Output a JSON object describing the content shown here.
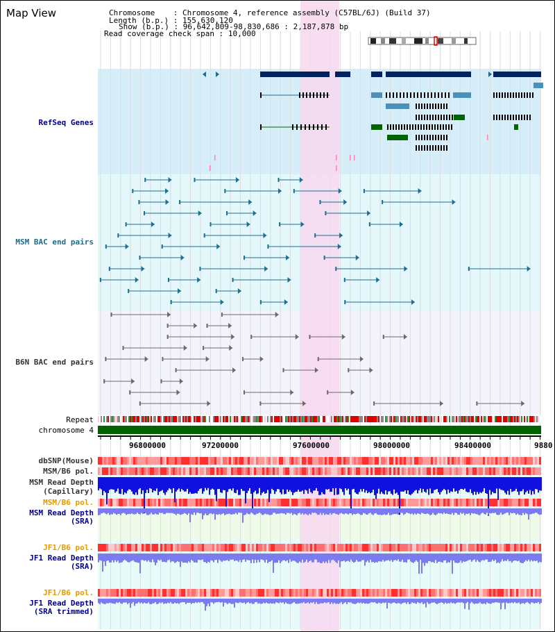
{
  "title": "Map View",
  "header": {
    "chromosome_label": "Chromosome",
    "chromosome_value": "Chromosome 4, reference assembly (C57BL/6J) (Build 37)",
    "length_label": "Length (b.p.)",
    "length_value": "155,630,120",
    "show_label": "Show (b.p.)",
    "show_value": "96,642,809-98,830,686 : 2,187,878 bp",
    "coverage_label": "Read coverage check span",
    "coverage_value": "10,000"
  },
  "tracks": {
    "refseq": "RefSeq Genes",
    "msm_bac": "MSM BAC end pairs",
    "b6n_bac": "B6N BAC end pairs",
    "repeat": "Repeat",
    "chromosome": "chromosome 4",
    "dbsnp": "dbSNP(Mouse)",
    "msm_b6_pol_1": "MSM/B6 pol.",
    "msm_read_depth_cap_1": "MSM Read Depth",
    "msm_read_depth_cap_2": "(Capillary)",
    "msm_b6_pol_2": "MSM/B6 pol.",
    "msm_read_depth_sra_1": "MSM Read Depth",
    "msm_read_depth_sra_2": "(SRA)",
    "jf1_b6_pol_1": "JF1/B6 pol.",
    "jf1_read_depth_sra_1": "JF1 Read Depth",
    "jf1_read_depth_sra_2": "(SRA)",
    "jf1_b6_pol_2": "JF1/B6 pol.",
    "jf1_read_depth_trim_1": "JF1 Read Depth",
    "jf1_read_depth_trim_2": "(SRA trimmed)"
  },
  "axis": {
    "ticks": [
      "96800000",
      "97200000",
      "97600000",
      "98000000",
      "98400000",
      "9880"
    ]
  },
  "colors": {
    "highlight": "#f8d8f0",
    "refseq_bg": "#d6eefa",
    "msm_bg": "#e4f7fb",
    "b6n_bg": "#f3f3fb",
    "navy_gene": "#00235f",
    "steel_gene": "#4a90b8",
    "green_gene": "#006400",
    "bac_teal": "#1d6f8e",
    "bac_gray": "#6a6a6a",
    "chrom_green": "#006400",
    "snp_red": "#ff6060",
    "depth_blue": "#1010e0",
    "depth_violet": "#7b7bf0"
  }
}
